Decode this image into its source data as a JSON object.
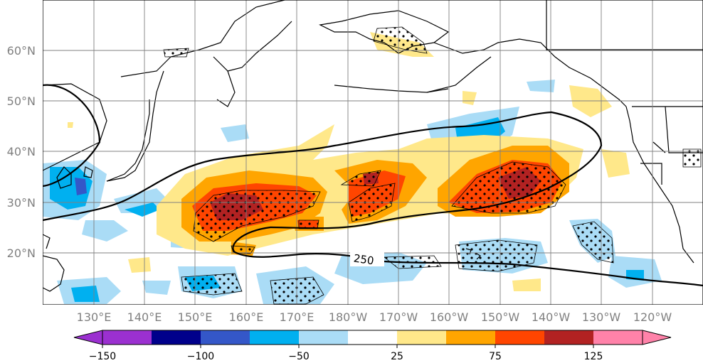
{
  "map": {
    "lat_labels": [
      "60°N",
      "50°N",
      "40°N",
      "30°N",
      "20°N"
    ],
    "lon_labels": [
      "130°E",
      "140°E",
      "150°E",
      "160°E",
      "170°E",
      "180°W",
      "170°W",
      "160°W",
      "150°W",
      "140°W",
      "130°W",
      "120°W"
    ],
    "contour_label": "250",
    "colors": {
      "coast": "#000000",
      "grid": "#808080",
      "stipple": "#000000"
    }
  },
  "colorbar": {
    "tick_labels": [
      "−150",
      "−100",
      "−50",
      "25",
      "75",
      "125"
    ],
    "colors": [
      "#9b30d0",
      "#00008b",
      "#3457c8",
      "#00b0f0",
      "#aadcf6",
      "#ffffff",
      "#ffe88a",
      "#ffa500",
      "#ff4500",
      "#b22222",
      "#ff82a9"
    ]
  }
}
